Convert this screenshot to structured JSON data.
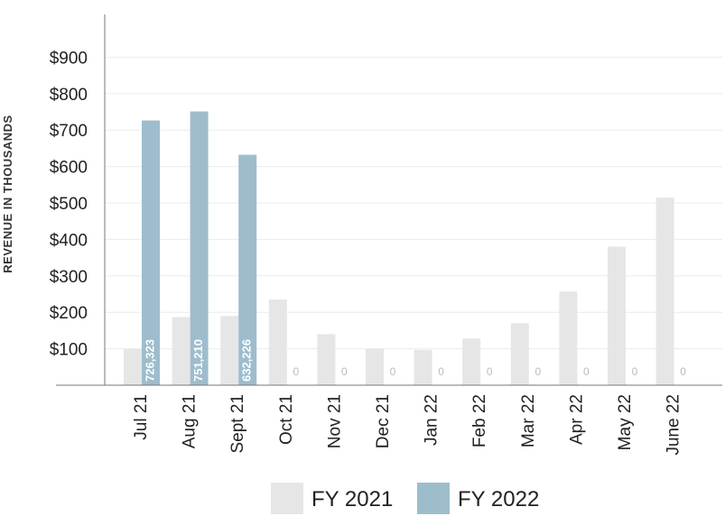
{
  "chart_data": {
    "type": "bar",
    "ylabel": "REVENUE IN THOUSANDS",
    "categories": [
      "Jul 21",
      "Aug 21",
      "Sept 21",
      "Oct 21",
      "Nov 21",
      "Dec 21",
      "Jan 22",
      "Feb 22",
      "Mar 22",
      "Apr 22",
      "May 22",
      "June 22"
    ],
    "ylim": [
      0,
      1000
    ],
    "yticks": [
      100,
      200,
      300,
      400,
      500,
      600,
      700,
      800,
      900
    ],
    "ytick_labels": [
      "$100",
      "$200",
      "$300",
      "$400",
      "$500",
      "$600",
      "$700",
      "$800",
      "$900"
    ],
    "grid": true,
    "legend_position": "bottom",
    "series": [
      {
        "name": "FY 2021",
        "color": "#e6e6e6",
        "values": [
          100,
          187,
          190,
          235,
          140,
          100,
          97,
          128,
          170,
          257,
          380,
          515
        ],
        "labels": [
          "",
          "",
          "",
          "",
          "",
          "",
          "",
          "",
          "",
          "",
          "",
          ""
        ]
      },
      {
        "name": "FY 2022",
        "color": "#9ebdcc",
        "values": [
          726.323,
          751.21,
          632.226,
          0,
          0,
          0,
          0,
          0,
          0,
          0,
          0,
          0
        ],
        "labels": [
          "726,323",
          "751,210",
          "632,226",
          "0",
          "0",
          "0",
          "0",
          "0",
          "0",
          "0",
          "0",
          "0"
        ]
      }
    ]
  }
}
